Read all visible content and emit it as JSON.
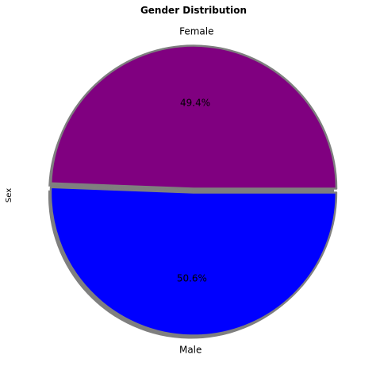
{
  "chart_data": {
    "type": "pie",
    "title": "Gender Distribution",
    "ylabel": "Sex",
    "labels": [
      "Female",
      "Male"
    ],
    "values": [
      49.4,
      50.6
    ],
    "percent_labels": [
      "49.4%",
      "50.6%"
    ],
    "colors": [
      "#800080",
      "#0000ff"
    ],
    "edge_color": "#7f7f7f",
    "shadow": true,
    "explode_gap": true,
    "start_angle_deg": 0,
    "direction": "counterclockwise"
  }
}
